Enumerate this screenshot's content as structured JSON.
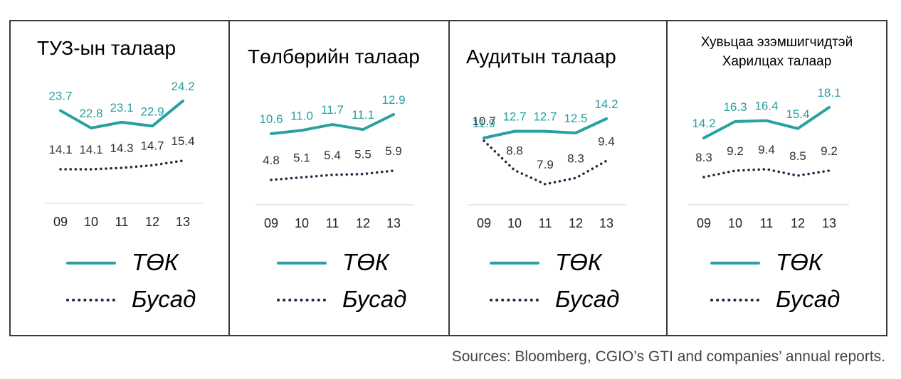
{
  "colors": {
    "tok": "#2aa0a0",
    "busad": "#1e2a44"
  },
  "legend": {
    "tok": "ТӨК",
    "busad": "Бусад"
  },
  "source": "Sources: Bloomberg, CGIO’s GTI and companies’ annual reports.",
  "chart_data": [
    {
      "type": "line",
      "title": "ТУЗ-ын талаар",
      "categories": [
        "09",
        "10",
        "11",
        "12",
        "13"
      ],
      "series": [
        {
          "name": "ТӨК",
          "values": [
            23.7,
            22.8,
            23.1,
            22.9,
            24.2
          ],
          "labels": [
            "23.7",
            "22.8",
            "23.1",
            "22.9",
            "24.2"
          ]
        },
        {
          "name": "Бусад",
          "values": [
            14.1,
            14.1,
            14.3,
            14.7,
            15.4
          ],
          "labels": [
            "14.1",
            "14.1",
            "14.3",
            "14.7",
            "15.4"
          ]
        }
      ]
    },
    {
      "type": "line",
      "title": "Төлбөрийн талаар",
      "categories": [
        "09",
        "10",
        "11",
        "12",
        "13"
      ],
      "series": [
        {
          "name": "ТӨК",
          "values": [
            10.6,
            11.0,
            11.7,
            11.1,
            12.9
          ],
          "labels": [
            "10.6",
            "11.0",
            "11.7",
            "11.1",
            "12.9"
          ]
        },
        {
          "name": "Бусад",
          "values": [
            4.8,
            5.1,
            5.4,
            5.5,
            5.9
          ],
          "labels": [
            "4.8",
            "5.1",
            "5.4",
            "5.5",
            "5.9"
          ]
        }
      ]
    },
    {
      "type": "line",
      "title": "Аудитын талаар",
      "categories": [
        "09",
        "10",
        "11",
        "12",
        "13"
      ],
      "series": [
        {
          "name": "ТӨК",
          "values": [
            11.9,
            12.7,
            12.7,
            12.5,
            14.2
          ],
          "labels": [
            "11.9",
            "12.7",
            "12.7",
            "12.5",
            "14.2"
          ]
        },
        {
          "name": "Бусад",
          "values": [
            10.7,
            8.8,
            7.9,
            8.3,
            9.4
          ],
          "labels": [
            "10.7",
            "8.8",
            "7.9",
            "8.3",
            "9.4"
          ]
        }
      ]
    },
    {
      "type": "line",
      "title": [
        "Хувьцаа эзэмшигчидтэй",
        "Харилцах талаар"
      ],
      "categories": [
        "09",
        "10",
        "11",
        "12",
        "13"
      ],
      "series": [
        {
          "name": "ТӨК",
          "values": [
            14.2,
            16.3,
            16.4,
            15.4,
            18.1
          ],
          "labels": [
            "14.2",
            "16.3",
            "16.4",
            "15.4",
            "18.1"
          ]
        },
        {
          "name": "Бусад",
          "values": [
            8.3,
            9.2,
            9.4,
            8.5,
            9.2
          ],
          "labels": [
            "8.3",
            "9.2",
            "9.4",
            "8.5",
            "9.2"
          ]
        }
      ]
    }
  ]
}
